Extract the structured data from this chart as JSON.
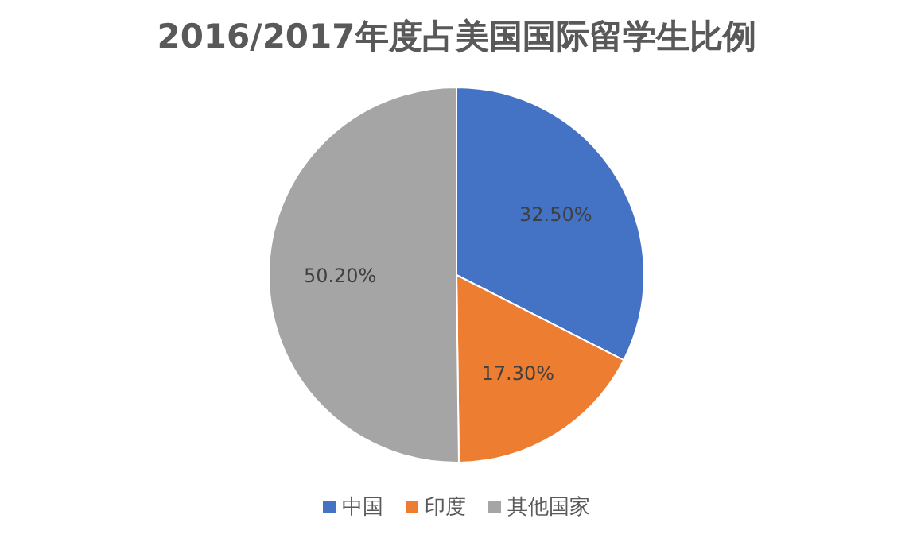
{
  "chart_data": {
    "type": "pie",
    "title": "2016/2017年度占美国国际留学生比例",
    "categories": [
      "中国",
      "印度",
      "其他国家"
    ],
    "values": [
      32.5,
      17.3,
      50.2
    ],
    "colors": [
      "#4472c4",
      "#ed7d31",
      "#a5a5a5"
    ],
    "value_labels": [
      "32.50%",
      "17.30%",
      "50.20%"
    ],
    "legend": "bottom"
  }
}
